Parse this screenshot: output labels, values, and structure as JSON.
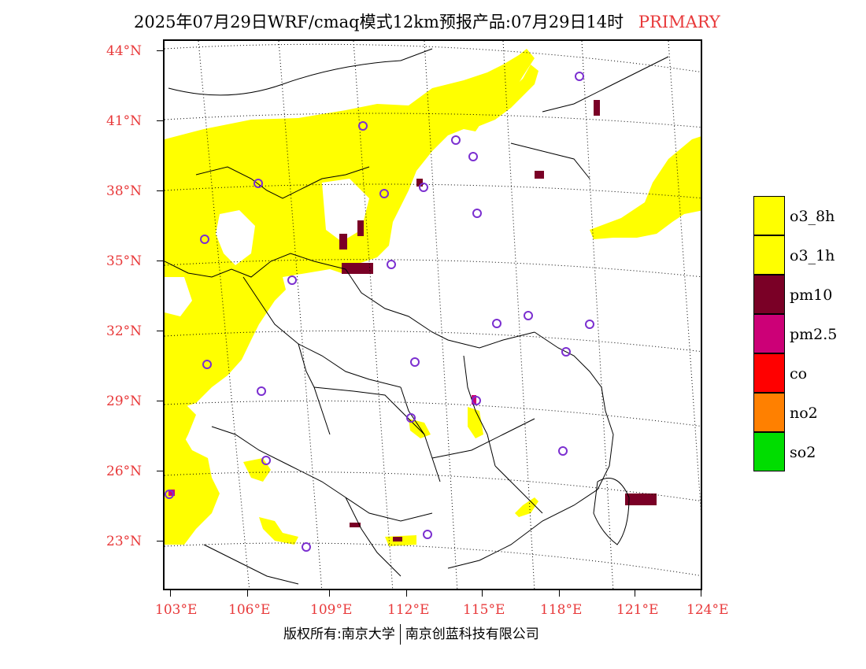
{
  "title": {
    "main": "2025年07月29日WRF/cmaq模式12km预报产品:07月29日14时",
    "tag": "PRIMARY"
  },
  "colors": {
    "label_red": "#e8393a",
    "o3_8h": "#ffff00",
    "o3_1h": "#ffff00",
    "pm10": "#7a0026",
    "pm25": "#cc0077",
    "co": "#ff0000",
    "no2": "#ff8000",
    "so2": "#00dd00",
    "city_marker": "#7b2fd0"
  },
  "lat_labels": [
    "44°N",
    "41°N",
    "38°N",
    "35°N",
    "32°N",
    "29°N",
    "26°N",
    "23°N"
  ],
  "lon_labels": [
    "103°E",
    "106°E",
    "109°E",
    "112°E",
    "115°E",
    "118°E",
    "121°E",
    "124°E"
  ],
  "legend": [
    {
      "label": "o3_8h",
      "color": "#ffff00"
    },
    {
      "label": "o3_1h",
      "color": "#ffff00"
    },
    {
      "label": "pm10",
      "color": "#7a0026"
    },
    {
      "label": "pm2.5",
      "color": "#cc0077"
    },
    {
      "label": "co",
      "color": "#ff0000"
    },
    {
      "label": "no2",
      "color": "#ff8000"
    },
    {
      "label": "so2",
      "color": "#00dd00"
    }
  ],
  "footer": {
    "left": "版权所有:南京大学",
    "right": "南京创蓝科技有限公司"
  }
}
